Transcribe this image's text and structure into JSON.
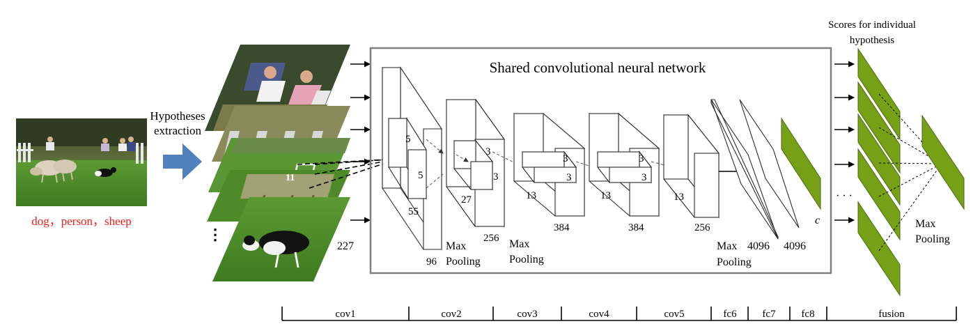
{
  "input": {
    "labels": "dog，person，sheep"
  },
  "hypotheses": {
    "label_line1": "Hypotheses",
    "label_line2": "extraction",
    "crop_size": "227",
    "kernel_size": "11",
    "ellipsis": "⋮"
  },
  "network": {
    "title": "Shared convolutional neural network",
    "cov1": {
      "k1": "5",
      "k2": "5",
      "spatial": "55",
      "channels": "96"
    },
    "cov2": {
      "k1": "3",
      "k2": "3",
      "spatial": "27",
      "channels": "256"
    },
    "cov3": {
      "k1": "3",
      "k2": "3",
      "spatial": "13",
      "channels": "384"
    },
    "cov4": {
      "k1": "3",
      "k2": "3",
      "spatial": "13",
      "channels": "384"
    },
    "cov5": {
      "spatial": "13",
      "channels": "256"
    },
    "fc6": {
      "units": "4096"
    },
    "fc7": {
      "units": "4096"
    },
    "fc8": {
      "units": "c"
    },
    "pool_labels": {
      "max": "Max",
      "pooling": "Pooling"
    }
  },
  "fusion": {
    "scores_line1": "Scores for individual",
    "scores_line2": "hypothesis",
    "ellipsis": "· · ·",
    "pool_line1": "Max",
    "pool_line2": "Pooling",
    "layer_color": "#76a015"
  },
  "stages": [
    "cov1",
    "cov2",
    "cov3",
    "cov4",
    "cov5",
    "fc6",
    "fc7",
    "fc8",
    "fusion"
  ],
  "colors": {
    "arrow_blue": "#4f81bd",
    "label_red": "#ff1a1a",
    "grass": "#4d8a2a"
  }
}
